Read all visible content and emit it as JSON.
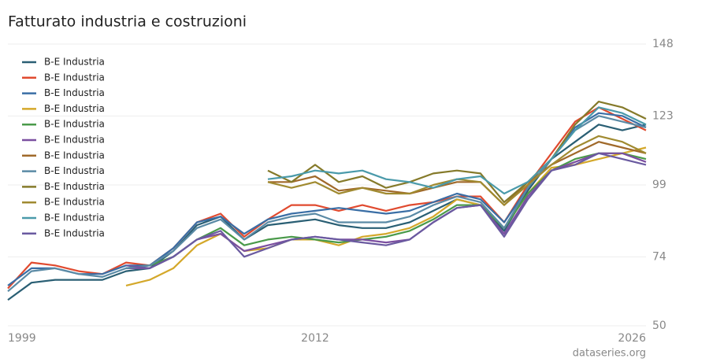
{
  "chart_data": {
    "type": "line",
    "title": "Fatturato industria e costruzioni",
    "credit": "dataseries.org",
    "x": [
      1999,
      2000,
      2001,
      2002,
      2003,
      2004,
      2005,
      2006,
      2007,
      2008,
      2009,
      2010,
      2011,
      2012,
      2013,
      2014,
      2015,
      2016,
      2017,
      2018,
      2019,
      2020,
      2021,
      2022,
      2023,
      2024,
      2025,
      2026
    ],
    "xlim": [
      1999,
      2026
    ],
    "xticks": [
      1999,
      2012,
      2026
    ],
    "ylim": [
      50,
      148
    ],
    "yticks": [
      50,
      74,
      99,
      123,
      148
    ],
    "grid": true,
    "legend": "top-left",
    "series": [
      {
        "name": "B-E Industria",
        "color": "#2a5f74",
        "values": [
          59,
          65,
          66,
          66,
          66,
          69,
          70,
          76,
          85,
          88,
          80,
          85,
          86,
          87,
          85,
          84,
          84,
          86,
          90,
          94,
          92,
          83,
          97,
          108,
          114,
          120,
          118,
          120
        ]
      },
      {
        "name": "B-E Industria",
        "color": "#e04a2f",
        "values": [
          63,
          72,
          71,
          69,
          68,
          72,
          71,
          77,
          86,
          89,
          81,
          87,
          92,
          92,
          90,
          92,
          90,
          92,
          93,
          95,
          95,
          86,
          99,
          110,
          121,
          126,
          122,
          118
        ]
      },
      {
        "name": "B-E Industria",
        "color": "#3a6ea5",
        "values": [
          64,
          70,
          70,
          68,
          68,
          71,
          71,
          77,
          86,
          88,
          82,
          87,
          89,
          90,
          91,
          90,
          89,
          90,
          93,
          96,
          94,
          86,
          98,
          108,
          119,
          124,
          123,
          119
        ]
      },
      {
        "name": "B-E Industria",
        "color": "#d4a82a",
        "values": [
          null,
          null,
          null,
          null,
          null,
          64,
          66,
          70,
          78,
          82,
          76,
          77,
          80,
          80,
          78,
          81,
          82,
          84,
          88,
          94,
          92,
          84,
          96,
          105,
          106,
          108,
          110,
          112
        ]
      },
      {
        "name": "B-E Industria",
        "color": "#4a9a4a",
        "values": [
          null,
          null,
          null,
          null,
          null,
          70,
          71,
          74,
          80,
          84,
          78,
          80,
          81,
          80,
          79,
          80,
          81,
          83,
          87,
          92,
          92,
          84,
          96,
          104,
          108,
          110,
          110,
          108
        ]
      },
      {
        "name": "B-E Industria",
        "color": "#7b4fa0",
        "values": [
          null,
          null,
          null,
          null,
          null,
          70,
          70,
          74,
          80,
          82,
          76,
          78,
          80,
          81,
          80,
          80,
          79,
          80,
          86,
          91,
          92,
          82,
          95,
          104,
          107,
          110,
          110,
          107
        ]
      },
      {
        "name": "B-E Industria",
        "color": "#a0692a",
        "values": [
          null,
          null,
          null,
          null,
          null,
          null,
          null,
          null,
          null,
          null,
          null,
          100,
          100,
          102,
          97,
          98,
          97,
          96,
          98,
          100,
          100,
          92,
          100,
          106,
          110,
          114,
          112,
          110
        ]
      },
      {
        "name": "B-E Industria",
        "color": "#5a8aa5",
        "values": [
          62,
          69,
          70,
          68,
          67,
          70,
          71,
          76,
          84,
          87,
          80,
          86,
          88,
          89,
          86,
          86,
          86,
          88,
          92,
          95,
          93,
          84,
          98,
          108,
          118,
          123,
          121,
          119
        ]
      },
      {
        "name": "B-E Industria",
        "color": "#857a2a",
        "values": [
          null,
          null,
          null,
          null,
          null,
          null,
          null,
          null,
          null,
          null,
          null,
          104,
          100,
          106,
          100,
          102,
          98,
          100,
          103,
          104,
          103,
          93,
          100,
          108,
          120,
          128,
          126,
          122
        ]
      },
      {
        "name": "B-E Industria",
        "color": "#a08a30",
        "values": [
          null,
          null,
          null,
          null,
          null,
          null,
          null,
          null,
          null,
          null,
          null,
          100,
          98,
          100,
          96,
          98,
          96,
          96,
          99,
          101,
          100,
          92,
          99,
          106,
          112,
          116,
          114,
          110
        ]
      },
      {
        "name": "B-E Industria",
        "color": "#4a9aaa",
        "values": [
          null,
          null,
          null,
          null,
          null,
          null,
          null,
          null,
          null,
          null,
          null,
          101,
          102,
          104,
          103,
          104,
          101,
          100,
          98,
          101,
          102,
          96,
          100,
          108,
          118,
          126,
          124,
          120
        ]
      },
      {
        "name": "B-E Industria",
        "color": "#6a5aa0",
        "values": [
          null,
          null,
          null,
          null,
          null,
          71,
          70,
          74,
          80,
          83,
          74,
          77,
          80,
          81,
          80,
          79,
          78,
          80,
          86,
          91,
          92,
          81,
          94,
          104,
          106,
          110,
          108,
          106
        ]
      }
    ]
  }
}
